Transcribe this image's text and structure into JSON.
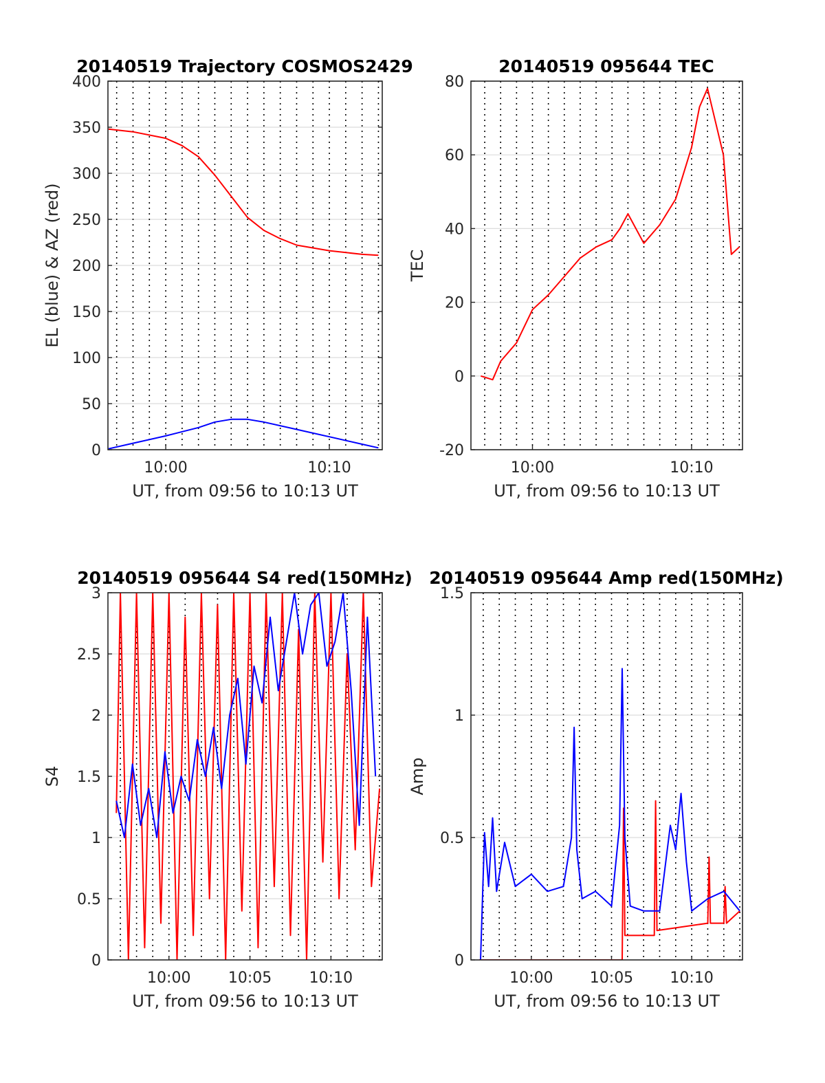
{
  "chart_data": [
    {
      "type": "line",
      "title": "20140519 Trajectory COSMOS2429",
      "xlabel": "UT, from 09:56 to 10:13 UT",
      "ylabel": "EL (blue) & AZ (red)",
      "xlim": [
        "09:56:28",
        "10:13:14"
      ],
      "ylim": [
        0,
        400
      ],
      "y_ticks": [
        "0",
        "50",
        "100",
        "150",
        "200",
        "250",
        "300",
        "350",
        "400"
      ],
      "x_ticks": [
        "10:00",
        "10:10"
      ],
      "x_tick_times": [
        "10:00",
        "10:10"
      ],
      "grid": "horizontal gridlines; dotted vertical lines every minute",
      "series": [
        {
          "color": "#ff0000",
          "x": [
            "09:56:30",
            "09:58",
            "10:00",
            "10:01",
            "10:02",
            "10:03",
            "10:04",
            "10:05",
            "10:06",
            "10:07",
            "10:08",
            "10:10",
            "10:12",
            "10:13"
          ],
          "values": [
            348,
            345,
            338,
            330,
            318,
            298,
            275,
            252,
            238,
            229,
            222,
            216,
            212,
            211
          ]
        },
        {
          "color": "#0000ff",
          "x": [
            "09:56:30",
            "09:58",
            "10:00",
            "10:02",
            "10:03",
            "10:04",
            "10:05",
            "10:06",
            "10:08",
            "10:10",
            "10:12",
            "10:13"
          ],
          "values": [
            1,
            7,
            15,
            24,
            30,
            33,
            33,
            30,
            22,
            14,
            6,
            2
          ]
        }
      ]
    },
    {
      "type": "line",
      "title": "20140519 095644 TEC",
      "xlabel": "UT, from 09:56 to 10:13 UT",
      "ylabel": "TEC",
      "xlim": [
        "09:56:08",
        "10:13:12"
      ],
      "ylim": [
        -20,
        80
      ],
      "y_ticks": [
        "-20",
        "0",
        "20",
        "40",
        "60",
        "80"
      ],
      "x_ticks": [
        "10:00",
        "10:10"
      ],
      "x_tick_times": [
        "10:00",
        "10:10"
      ],
      "grid": "horizontal gridlines; dotted vertical lines every minute",
      "series": [
        {
          "color": "#ff0000",
          "x": [
            "09:56:45",
            "09:57:30",
            "09:58",
            "09:59",
            "10:00",
            "10:01",
            "10:02",
            "10:03",
            "10:04",
            "10:05",
            "10:05:30",
            "10:06",
            "10:07",
            "10:08",
            "10:09",
            "10:10",
            "10:10:30",
            "10:11",
            "10:12",
            "10:12:30",
            "10:13"
          ],
          "values": [
            0,
            -1,
            4,
            9,
            18,
            22,
            27,
            32,
            35,
            37,
            40,
            44,
            36,
            41,
            48,
            62,
            73,
            78,
            60,
            33,
            35
          ]
        }
      ]
    },
    {
      "type": "line",
      "title": "20140519 095644 S4 red(150MHz)",
      "xlabel": "UT, from 09:56 to 10:13 UT",
      "ylabel": "S4",
      "xlim": [
        "09:56:14",
        "10:13:10"
      ],
      "ylim": [
        0,
        3
      ],
      "y_ticks": [
        "0",
        "0.5",
        "1",
        "1.5",
        "2",
        "2.5",
        "3"
      ],
      "x_ticks": [
        "10:00",
        "10:05",
        "10:10"
      ],
      "x_tick_times": [
        "10:00",
        "10:05",
        "10:10"
      ],
      "grid": "horizontal gridlines; dotted vertical lines every minute",
      "series": [
        {
          "color": "#ff0000",
          "x": [
            "09:56:45",
            "09:57",
            "09:57:30",
            "09:58",
            "09:58:30",
            "09:59",
            "09:59:30",
            "10:00",
            "10:00:30",
            "10:01",
            "10:01:30",
            "10:02",
            "10:02:30",
            "10:03",
            "10:03:30",
            "10:04",
            "10:04:30",
            "10:05",
            "10:05:30",
            "10:06",
            "10:06:30",
            "10:07",
            "10:07:30",
            "10:08",
            "10:08:30",
            "10:09",
            "10:09:30",
            "10:10",
            "10:10:30",
            "10:11",
            "10:11:30",
            "10:12",
            "10:12:30",
            "10:13"
          ],
          "values": [
            1.2,
            3,
            0,
            3,
            0.1,
            3,
            0.3,
            3,
            0,
            2.8,
            0.2,
            3,
            0.5,
            2.9,
            0,
            3,
            0.4,
            3,
            0.1,
            3,
            0.6,
            3,
            0.2,
            2.7,
            0,
            3,
            0.8,
            3,
            0.5,
            2.5,
            0.9,
            3,
            0.6,
            1.4
          ]
        },
        {
          "color": "#0000ff",
          "x": [
            "09:56:45",
            "09:57:15",
            "09:57:45",
            "09:58:15",
            "09:58:45",
            "09:59:15",
            "09:59:45",
            "10:00:15",
            "10:00:45",
            "10:01:15",
            "10:01:45",
            "10:02:15",
            "10:02:45",
            "10:03:15",
            "10:03:45",
            "10:04:15",
            "10:04:45",
            "10:05:15",
            "10:05:45",
            "10:06:15",
            "10:06:45",
            "10:07:15",
            "10:07:45",
            "10:08:15",
            "10:08:45",
            "10:09:15",
            "10:09:45",
            "10:10:15",
            "10:10:45",
            "10:11:15",
            "10:11:45",
            "10:12:15",
            "10:12:45"
          ],
          "values": [
            1.3,
            1.0,
            1.6,
            1.1,
            1.4,
            1.0,
            1.7,
            1.2,
            1.5,
            1.3,
            1.8,
            1.5,
            1.9,
            1.4,
            2.0,
            2.3,
            1.6,
            2.4,
            2.1,
            2.8,
            2.2,
            2.6,
            3.0,
            2.5,
            2.9,
            3.0,
            2.4,
            2.6,
            3.0,
            2.2,
            1.1,
            2.8,
            1.5
          ]
        }
      ]
    },
    {
      "type": "line",
      "title": "20140519 095644 Amp red(150MHz)",
      "xlabel": "UT, from 09:56 to 10:13 UT",
      "ylabel": "Amp",
      "xlim": [
        "09:56:14",
        "10:13:10"
      ],
      "ylim": [
        0,
        1.5
      ],
      "y_ticks": [
        "0",
        "0.5",
        "1",
        "1.5"
      ],
      "x_ticks": [
        "10:00",
        "10:05",
        "10:10"
      ],
      "x_tick_times": [
        "10:00",
        "10:05",
        "10:10"
      ],
      "grid": "horizontal gridlines; dotted vertical lines every minute",
      "series": [
        {
          "color": "#ff0000",
          "x": [
            "09:56:45",
            "10:05:40",
            "10:05:45",
            "10:05:50",
            "10:07:40",
            "10:07:45",
            "10:07:50",
            "10:11",
            "10:11:05",
            "10:11:10",
            "10:12",
            "10:12:05",
            "10:12:10",
            "10:13"
          ],
          "values": [
            0,
            0,
            0.62,
            0.1,
            0.1,
            0.65,
            0.12,
            0.15,
            0.42,
            0.15,
            0.15,
            0.3,
            0.15,
            0.2
          ]
        },
        {
          "color": "#0000ff",
          "x": [
            "09:56:50",
            "09:57:05",
            "09:57:20",
            "09:57:35",
            "09:57:50",
            "09:58:20",
            "09:59:00",
            "10:00:00",
            "10:01:00",
            "10:02:00",
            "10:02:30",
            "10:02:40",
            "10:02:50",
            "10:03:10",
            "10:04:00",
            "10:05:00",
            "10:05:30",
            "10:05:40",
            "10:05:50",
            "10:06:10",
            "10:07:00",
            "10:08:00",
            "10:08:40",
            "10:09:00",
            "10:09:20",
            "10:09:40",
            "10:10:00",
            "10:11:00",
            "10:12:00",
            "10:13:00"
          ],
          "values": [
            0,
            0.52,
            0.3,
            0.58,
            0.28,
            0.48,
            0.3,
            0.35,
            0.28,
            0.3,
            0.5,
            0.95,
            0.45,
            0.25,
            0.28,
            0.22,
            0.55,
            1.19,
            0.5,
            0.22,
            0.2,
            0.2,
            0.55,
            0.45,
            0.68,
            0.4,
            0.2,
            0.25,
            0.28,
            0.2
          ]
        }
      ]
    }
  ]
}
